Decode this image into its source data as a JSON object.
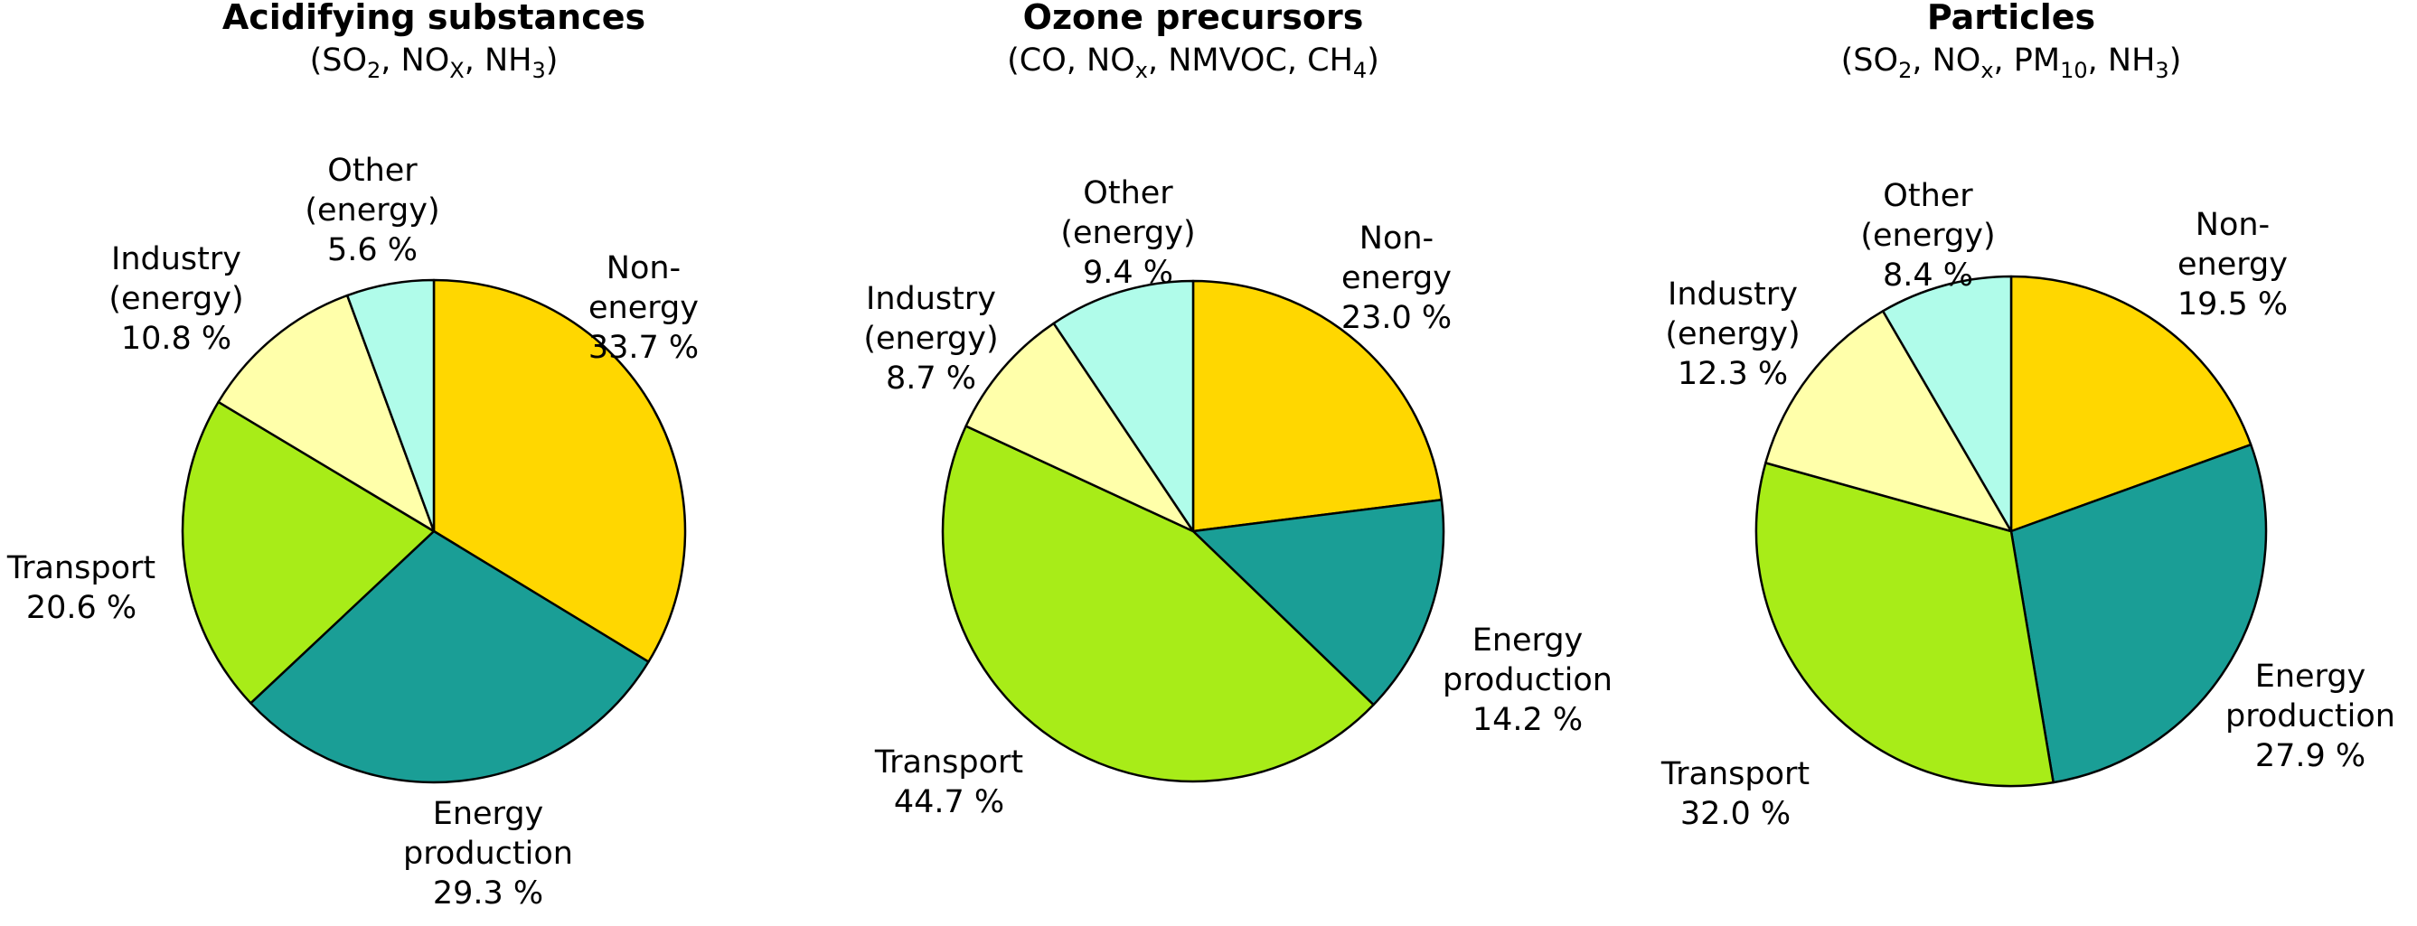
{
  "colors": {
    "Non-energy": "#FFD700",
    "Energy production": "#1A9E96",
    "Transport": "#A8EC18",
    "Industry (energy)": "#FFFFAA",
    "Other (energy)": "#B0FCEA",
    "edge": "#000000"
  },
  "chart_data": [
    {
      "type": "pie",
      "title": "Acidifying substances",
      "subtitle": [
        {
          "t": "(SO"
        },
        {
          "t": "2",
          "sub": true
        },
        {
          "t": ", NO"
        },
        {
          "t": "X",
          "sub": true
        },
        {
          "t": ", NH"
        },
        {
          "t": "3",
          "sub": true
        },
        {
          "t": ")"
        }
      ],
      "slices": [
        {
          "name": "Non-energy",
          "value": 33.7,
          "label": [
            "Non-",
            "energy",
            "33.7 %"
          ]
        },
        {
          "name": "Energy production",
          "value": 29.3,
          "label": [
            "Energy",
            "production",
            "29.3 %"
          ]
        },
        {
          "name": "Transport",
          "value": 20.6,
          "label": [
            "Transport",
            "20.6 %"
          ]
        },
        {
          "name": "Industry (energy)",
          "value": 10.8,
          "label": [
            "Industry",
            "(energy)",
            "10.8 %"
          ]
        },
        {
          "name": "Other (energy)",
          "value": 5.6,
          "label": [
            "Other",
            "(energy)",
            "5.6 %"
          ]
        }
      ]
    },
    {
      "type": "pie",
      "title": "Ozone precursors",
      "subtitle": [
        {
          "t": "(CO, NO"
        },
        {
          "t": "x",
          "sub": true
        },
        {
          "t": ", NMVOC, CH"
        },
        {
          "t": "4",
          "sub": true
        },
        {
          "t": ")"
        }
      ],
      "slices": [
        {
          "name": "Non-energy",
          "value": 23.0,
          "label": [
            "Non-",
            "energy",
            "23.0 %"
          ]
        },
        {
          "name": "Energy production",
          "value": 14.2,
          "label": [
            "Energy",
            "production",
            "14.2 %"
          ]
        },
        {
          "name": "Transport",
          "value": 44.7,
          "label": [
            "Transport",
            "44.7 %"
          ]
        },
        {
          "name": "Industry (energy)",
          "value": 8.7,
          "label": [
            "Industry",
            "(energy)",
            "8.7 %"
          ]
        },
        {
          "name": "Other (energy)",
          "value": 9.4,
          "label": [
            "Other",
            "(energy)",
            "9.4 %"
          ]
        }
      ]
    },
    {
      "type": "pie",
      "title": "Particles",
      "subtitle": [
        {
          "t": "(SO"
        },
        {
          "t": "2",
          "sub": true
        },
        {
          "t": ", NO"
        },
        {
          "t": "x",
          "sub": true
        },
        {
          "t": ", PM"
        },
        {
          "t": "10",
          "sub": true
        },
        {
          "t": ", NH"
        },
        {
          "t": "3",
          "sub": true
        },
        {
          "t": ")"
        }
      ],
      "slices": [
        {
          "name": "Non-energy",
          "value": 19.5,
          "label": [
            "Non-",
            "energy",
            "19.5 %"
          ]
        },
        {
          "name": "Energy production",
          "value": 27.9,
          "label": [
            "Energy",
            "production",
            "27.9 %"
          ]
        },
        {
          "name": "Transport",
          "value": 32.0,
          "label": [
            "Transport",
            "32.0 %"
          ]
        },
        {
          "name": "Industry (energy)",
          "value": 12.3,
          "label": [
            "Industry",
            "(energy)",
            "12.3 %"
          ]
        },
        {
          "name": "Other (energy)",
          "value": 8.4,
          "label": [
            "Other",
            "(energy)",
            "8.4 %"
          ]
        }
      ]
    }
  ]
}
